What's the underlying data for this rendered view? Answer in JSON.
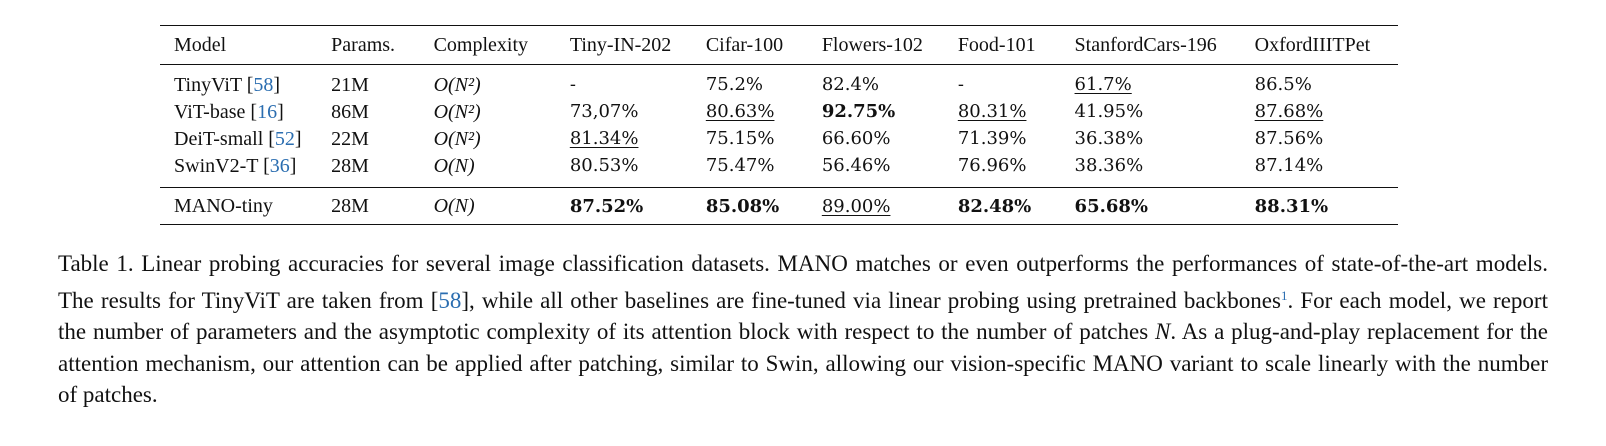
{
  "table": {
    "headers": [
      "Model",
      "Params.",
      "Complexity",
      "Tiny-IN-202",
      "Cifar-100",
      "Flowers-102",
      "Food-101",
      "StanfordCars-196",
      "OxfordIIITPet"
    ],
    "rows": [
      {
        "model": "TinyViT",
        "cite": "58",
        "params": "21M",
        "complexity": "O(N²)",
        "cells": [
          {
            "v": "-",
            "style": ""
          },
          {
            "v": "75.2%",
            "style": ""
          },
          {
            "v": "82.4%",
            "style": ""
          },
          {
            "v": "-",
            "style": ""
          },
          {
            "v": "61.7%",
            "style": "underline"
          },
          {
            "v": "86.5%",
            "style": ""
          }
        ]
      },
      {
        "model": "ViT-base",
        "cite": "16",
        "params": "86M",
        "complexity": "O(N²)",
        "cells": [
          {
            "v": "73,07%",
            "style": ""
          },
          {
            "v": "80.63%",
            "style": "underline"
          },
          {
            "v": "92.75%",
            "style": "bold"
          },
          {
            "v": "80.31%",
            "style": "underline"
          },
          {
            "v": "41.95%",
            "style": ""
          },
          {
            "v": "87.68%",
            "style": "underline"
          }
        ]
      },
      {
        "model": "DeiT-small",
        "cite": "52",
        "params": "22M",
        "complexity": "O(N²)",
        "cells": [
          {
            "v": "81.34%",
            "style": "underline"
          },
          {
            "v": "75.15%",
            "style": ""
          },
          {
            "v": "66.60%",
            "style": ""
          },
          {
            "v": "71.39%",
            "style": ""
          },
          {
            "v": "36.38%",
            "style": ""
          },
          {
            "v": "87.56%",
            "style": ""
          }
        ]
      },
      {
        "model": "SwinV2-T",
        "cite": "36",
        "params": "28M",
        "complexity": "O(N)",
        "cells": [
          {
            "v": "80.53%",
            "style": ""
          },
          {
            "v": "75.47%",
            "style": ""
          },
          {
            "v": "56.46%",
            "style": ""
          },
          {
            "v": "76.96%",
            "style": ""
          },
          {
            "v": "38.36%",
            "style": ""
          },
          {
            "v": "87.14%",
            "style": ""
          }
        ]
      }
    ],
    "ours": {
      "model": "MANO-tiny",
      "params": "28M",
      "complexity": "O(N)",
      "cells": [
        {
          "v": "87.52%",
          "style": "bold"
        },
        {
          "v": "85.08%",
          "style": "bold"
        },
        {
          "v": "89.00%",
          "style": "underline"
        },
        {
          "v": "82.48%",
          "style": "bold"
        },
        {
          "v": "65.68%",
          "style": "bold"
        },
        {
          "v": "88.31%",
          "style": "bold"
        }
      ]
    }
  },
  "caption": {
    "part1": "Table 1. Linear probing accuracies for several image classification datasets. MANO matches or even outperforms the performances of state-of-the-art models. The results for TinyViT are taken from [",
    "cite": "58",
    "part2": "], while all other baselines are fine-tuned via linear probing using pretrained backbones",
    "footnote": "1",
    "part3": ". For each model, we report the number of parameters and the asymptotic complexity of its attention block with respect to the number of patches ",
    "var": "N",
    "part4": ". As a plug-and-play replacement for the attention mechanism, our attention can be applied after patching, similar to Swin, allowing our vision-specific MANO variant to scale linearly with the number of patches."
  }
}
